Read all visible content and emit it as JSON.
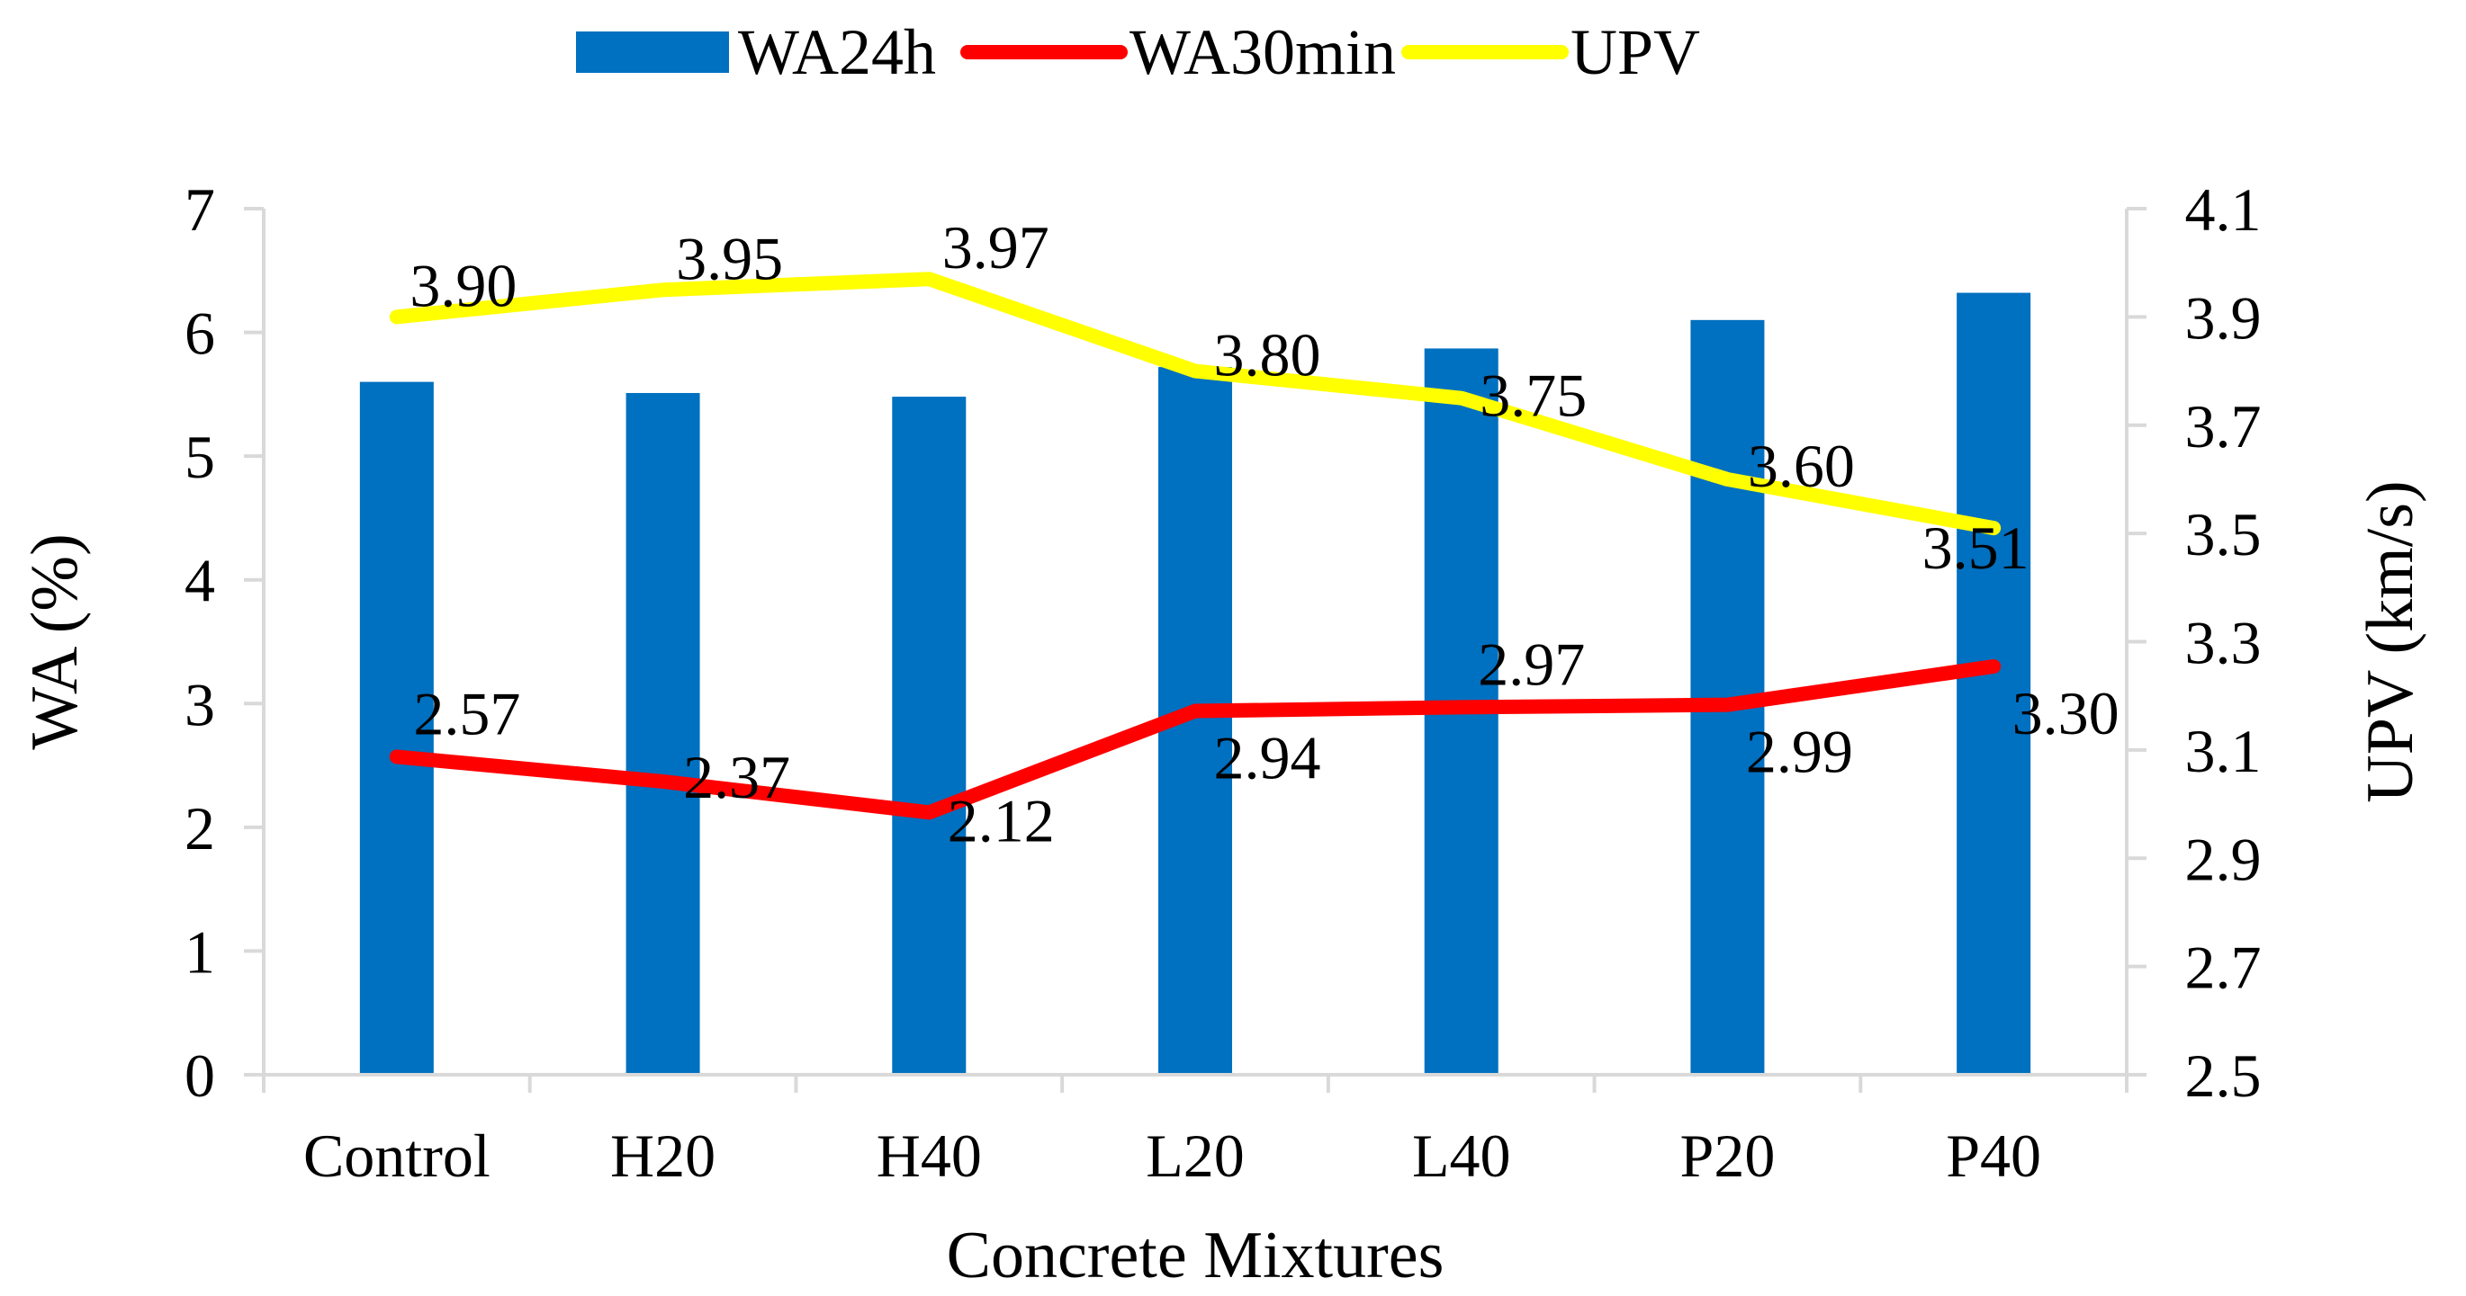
{
  "chart_data": {
    "type": "bar+line",
    "categories": [
      "Control",
      "H20",
      "H40",
      "L20",
      "L40",
      "P20",
      "P40"
    ],
    "series": [
      {
        "name": "WA24h",
        "kind": "bar",
        "axis": "left",
        "color": "#0070C0",
        "values": [
          5.6,
          5.51,
          5.48,
          5.72,
          5.87,
          6.1,
          6.32
        ]
      },
      {
        "name": "WA30min",
        "kind": "line",
        "axis": "left",
        "color": "#FF0000",
        "values": [
          2.57,
          2.37,
          2.12,
          2.94,
          2.97,
          2.99,
          3.3
        ],
        "labels": [
          "2.57",
          "2.37",
          "2.12",
          "2.94",
          "2.97",
          "2.99",
          "3.30"
        ]
      },
      {
        "name": "UPV",
        "kind": "line",
        "axis": "right",
        "color": "#FFFF00",
        "values": [
          3.9,
          3.95,
          3.97,
          3.8,
          3.75,
          3.6,
          3.51
        ],
        "labels": [
          "3.90",
          "3.95",
          "3.97",
          "3.80",
          "3.75",
          "3.60",
          "3.51"
        ]
      }
    ],
    "xlabel": "Concrete Mixtures",
    "ylabel": "WA (%)",
    "y2label": "UPV (km/s)",
    "ylim": [
      0,
      7
    ],
    "yticks": [
      "0",
      "1",
      "2",
      "3",
      "4",
      "5",
      "6",
      "7"
    ],
    "y2lim": [
      2.5,
      4.1
    ],
    "y2ticks": [
      "2.5",
      "2.7",
      "2.9",
      "3.1",
      "3.3",
      "3.5",
      "3.7",
      "3.9",
      "4.1"
    ],
    "legend_position": "top-center",
    "grid": false
  }
}
